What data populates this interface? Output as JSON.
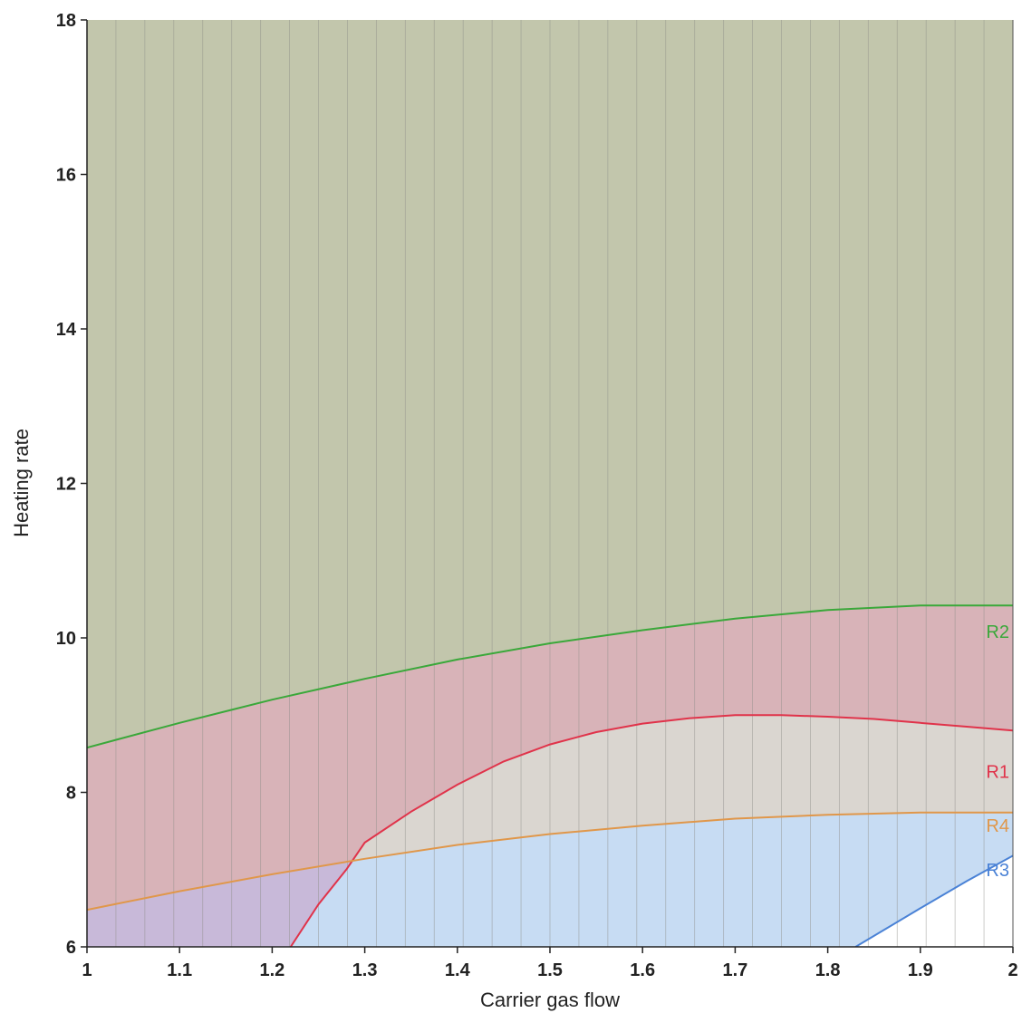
{
  "chart_data": {
    "type": "area",
    "title": "",
    "xlabel": "Carrier gas flow",
    "ylabel": "Heating rate",
    "xlim": [
      1,
      2
    ],
    "ylim": [
      6,
      18
    ],
    "xticks": [
      "1",
      "1.1",
      "1.2",
      "1.3",
      "1.4",
      "1.5",
      "1.6",
      "1.7",
      "1.8",
      "1.9",
      "2"
    ],
    "yticks": [
      "6",
      "8",
      "10",
      "12",
      "14",
      "16",
      "18"
    ],
    "grid": "vertical",
    "background_color": "#c2c6ac",
    "series": [
      {
        "name": "R2",
        "color": "#3aa83a",
        "fill": "#d8b3b8",
        "x": [
          1.0,
          1.1,
          1.2,
          1.3,
          1.4,
          1.5,
          1.6,
          1.7,
          1.8,
          1.9,
          2.0
        ],
        "y": [
          8.58,
          8.9,
          9.2,
          9.47,
          9.72,
          9.93,
          10.1,
          10.25,
          10.36,
          10.42,
          10.42
        ]
      },
      {
        "name": "R1",
        "color": "#e0334a",
        "fill": "#dad6d0",
        "x": [
          1.22,
          1.25,
          1.28,
          1.3,
          1.35,
          1.4,
          1.45,
          1.5,
          1.55,
          1.6,
          1.65,
          1.7,
          1.75,
          1.8,
          1.85,
          1.9,
          1.95,
          2.0
        ],
        "y": [
          6.0,
          6.55,
          7.0,
          7.35,
          7.75,
          8.1,
          8.4,
          8.62,
          8.78,
          8.89,
          8.96,
          9.0,
          9.0,
          8.98,
          8.95,
          8.9,
          8.85,
          8.8
        ]
      },
      {
        "name": "R4",
        "color": "#e0974a",
        "fill": "#c7dcf3",
        "x": [
          1.0,
          1.1,
          1.2,
          1.3,
          1.4,
          1.5,
          1.6,
          1.7,
          1.8,
          1.9,
          2.0
        ],
        "y": [
          6.48,
          6.72,
          6.94,
          7.14,
          7.32,
          7.46,
          7.57,
          7.66,
          7.71,
          7.74,
          7.74
        ]
      },
      {
        "name": "R3",
        "color": "#4a82d6",
        "fill": "#ffffff",
        "x": [
          1.83,
          1.9,
          1.95,
          2.0
        ],
        "y": [
          6.0,
          6.5,
          6.85,
          7.18
        ]
      }
    ],
    "overlap_fill": "#c8b9d9"
  }
}
